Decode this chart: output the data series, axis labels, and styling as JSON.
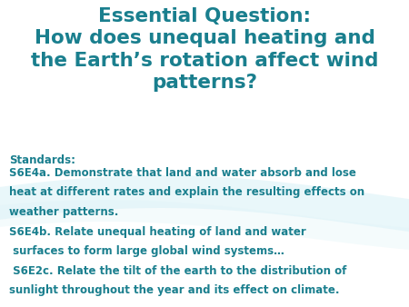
{
  "bg_color": "#ffffff",
  "title_lines": [
    "Essential Question:",
    "How does unequal heating and",
    "the Earth’s rotation affect wind",
    "patterns?"
  ],
  "title_color": "#1a7f8e",
  "title_fontsize": 15.5,
  "standards_label": "Standards:",
  "body_lines": [
    "S6E4a. Demonstrate that land and water absorb and lose",
    "heat at different rates and explain the resulting effects on",
    "weather patterns.",
    "S6E4b. Relate unequal heating of land and water",
    " surfaces to form large global wind systems…",
    " S6E2c. Relate the tilt of the earth to the distribution of",
    "sunlight throughout the year and its effect on climate."
  ],
  "text_color": "#1a7f8e",
  "body_fontsize": 8.5,
  "standards_fontsize": 8.5,
  "wave_color": "#d0eef5",
  "wave2_color": "#e0f4f8"
}
